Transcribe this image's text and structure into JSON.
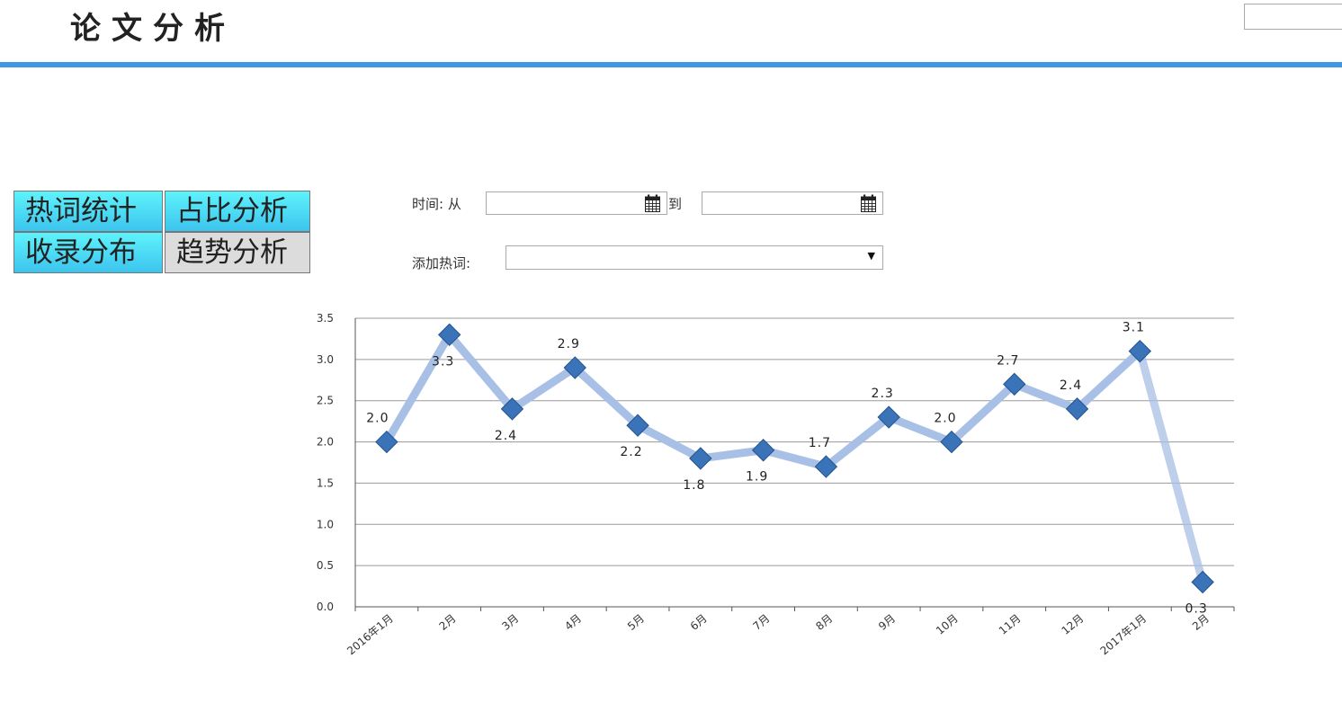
{
  "header": {
    "title": "论文分析",
    "accent_color": "#3d98e8"
  },
  "nav": {
    "items": [
      {
        "label": "热词统计",
        "style": "cyan"
      },
      {
        "label": "占比分析",
        "style": "cyan"
      },
      {
        "label": "收录分布",
        "style": "cyan"
      },
      {
        "label": "趋势分析",
        "style": "active"
      }
    ]
  },
  "filters": {
    "time_label": "时间: 从",
    "to_label": "到",
    "from_value": "",
    "to_value": "",
    "calendar_icon": "calendar-icon",
    "hotword_label": "添加热词:",
    "hotword_selected": ""
  },
  "chart_data": {
    "type": "line",
    "title": "",
    "xlabel": "",
    "ylabel": "",
    "ylim": [
      0,
      3.5
    ],
    "y_ticks": [
      "0.0",
      "0.5",
      "1.0",
      "1.5",
      "2.0",
      "2.5",
      "3.0",
      "3.5"
    ],
    "grid": true,
    "categories": [
      "2016年1月",
      "2月",
      "3月",
      "4月",
      "5月",
      "6月",
      "7月",
      "8月",
      "9月",
      "10月",
      "11月",
      "12月",
      "2017年1月",
      "2月"
    ],
    "series": [
      {
        "values": [
          2.0,
          3.3,
          2.4,
          2.9,
          2.2,
          1.8,
          1.9,
          1.7,
          2.3,
          2.0,
          2.7,
          2.4,
          3.1,
          0.3
        ],
        "labels": [
          "2.0",
          "3.3",
          "2.4",
          "2.9",
          "2.2",
          "1.8",
          "1.9",
          "1.7",
          "2.3",
          "2.0",
          "2.7",
          "2.4",
          "3.1",
          "0.3"
        ],
        "line_color": "#a9c0e6",
        "marker_color": "#3a73b8"
      }
    ]
  }
}
